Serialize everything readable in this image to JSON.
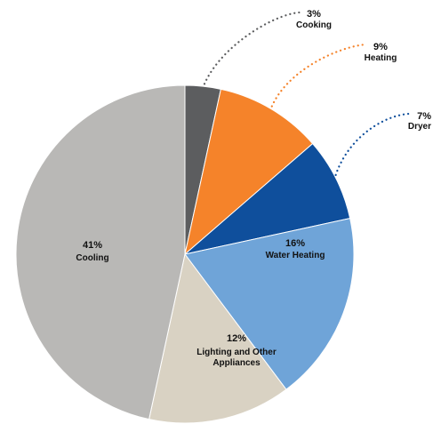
{
  "chart_data": {
    "type": "pie",
    "slices": [
      {
        "label": "Cooking",
        "value_label": "3%",
        "value": 3,
        "color": "#5c5d5f",
        "label_position": "outside"
      },
      {
        "label": "Heating",
        "value_label": "9%",
        "value": 9,
        "color": "#f5832a",
        "label_position": "outside"
      },
      {
        "label": "Dryer",
        "value_label": "7%",
        "value": 7,
        "color": "#0f4f9c",
        "label_position": "outside"
      },
      {
        "label": "Water Heating",
        "value_label": "16%",
        "value": 16,
        "color": "#6fa4d8",
        "label_position": "inside"
      },
      {
        "label": "Lighting and Other Appliances",
        "value_label": "12%",
        "value": 12,
        "color": "#d9d2c3",
        "label_position": "inside"
      },
      {
        "label": "Cooling",
        "value_label": "41%",
        "value": 41,
        "color": "#b9b8b6",
        "label_position": "inside"
      }
    ],
    "start_angle_deg": 0,
    "direction": "clockwise",
    "leader_line_style": "dotted"
  }
}
